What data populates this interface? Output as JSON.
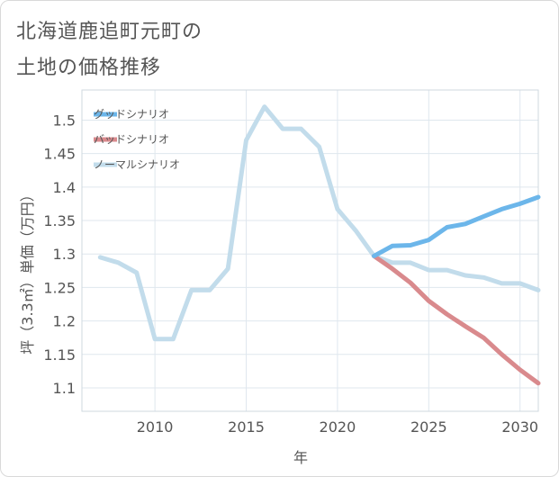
{
  "title": {
    "line1": "北海道鹿追町元町の",
    "line2": "土地の価格推移"
  },
  "chart_data": {
    "type": "line",
    "xlabel": "年",
    "ylabel": "坪（3.3㎡）単価（万円）",
    "xlim": [
      2006,
      2031
    ],
    "ylim": [
      1.065,
      1.545
    ],
    "xticks": [
      2010,
      2015,
      2020,
      2025,
      2030
    ],
    "yticks": [
      1.1,
      1.15,
      1.2,
      1.25,
      1.3,
      1.35,
      1.4,
      1.45,
      1.5
    ],
    "grid": true,
    "legend_position": "top-left",
    "series": [
      {
        "name": "グッドシナリオ",
        "color": "#6cb6ea",
        "x": [
          2022,
          2023,
          2024,
          2025,
          2026,
          2027,
          2028,
          2029,
          2030,
          2031
        ],
        "y": [
          1.297,
          1.312,
          1.313,
          1.321,
          1.34,
          1.345,
          1.356,
          1.367,
          1.375,
          1.385
        ]
      },
      {
        "name": "バッドシナリオ",
        "color": "#d98a8d",
        "x": [
          2022,
          2023,
          2024,
          2025,
          2026,
          2027,
          2028,
          2029,
          2030,
          2031
        ],
        "y": [
          1.297,
          1.278,
          1.257,
          1.23,
          1.21,
          1.192,
          1.175,
          1.15,
          1.127,
          1.107
        ]
      },
      {
        "name": "ノーマルシナリオ",
        "color": "#c2dceb",
        "x": [
          2007,
          2008,
          2009,
          2010,
          2011,
          2012,
          2013,
          2014,
          2015,
          2016,
          2017,
          2018,
          2019,
          2020,
          2021,
          2022,
          2023,
          2024,
          2025,
          2026,
          2027,
          2028,
          2029,
          2030,
          2031
        ],
        "y": [
          1.295,
          1.287,
          1.272,
          1.173,
          1.173,
          1.246,
          1.246,
          1.278,
          1.47,
          1.52,
          1.487,
          1.487,
          1.46,
          1.367,
          1.335,
          1.297,
          1.287,
          1.287,
          1.276,
          1.276,
          1.268,
          1.265,
          1.256,
          1.256,
          1.246
        ]
      }
    ]
  }
}
